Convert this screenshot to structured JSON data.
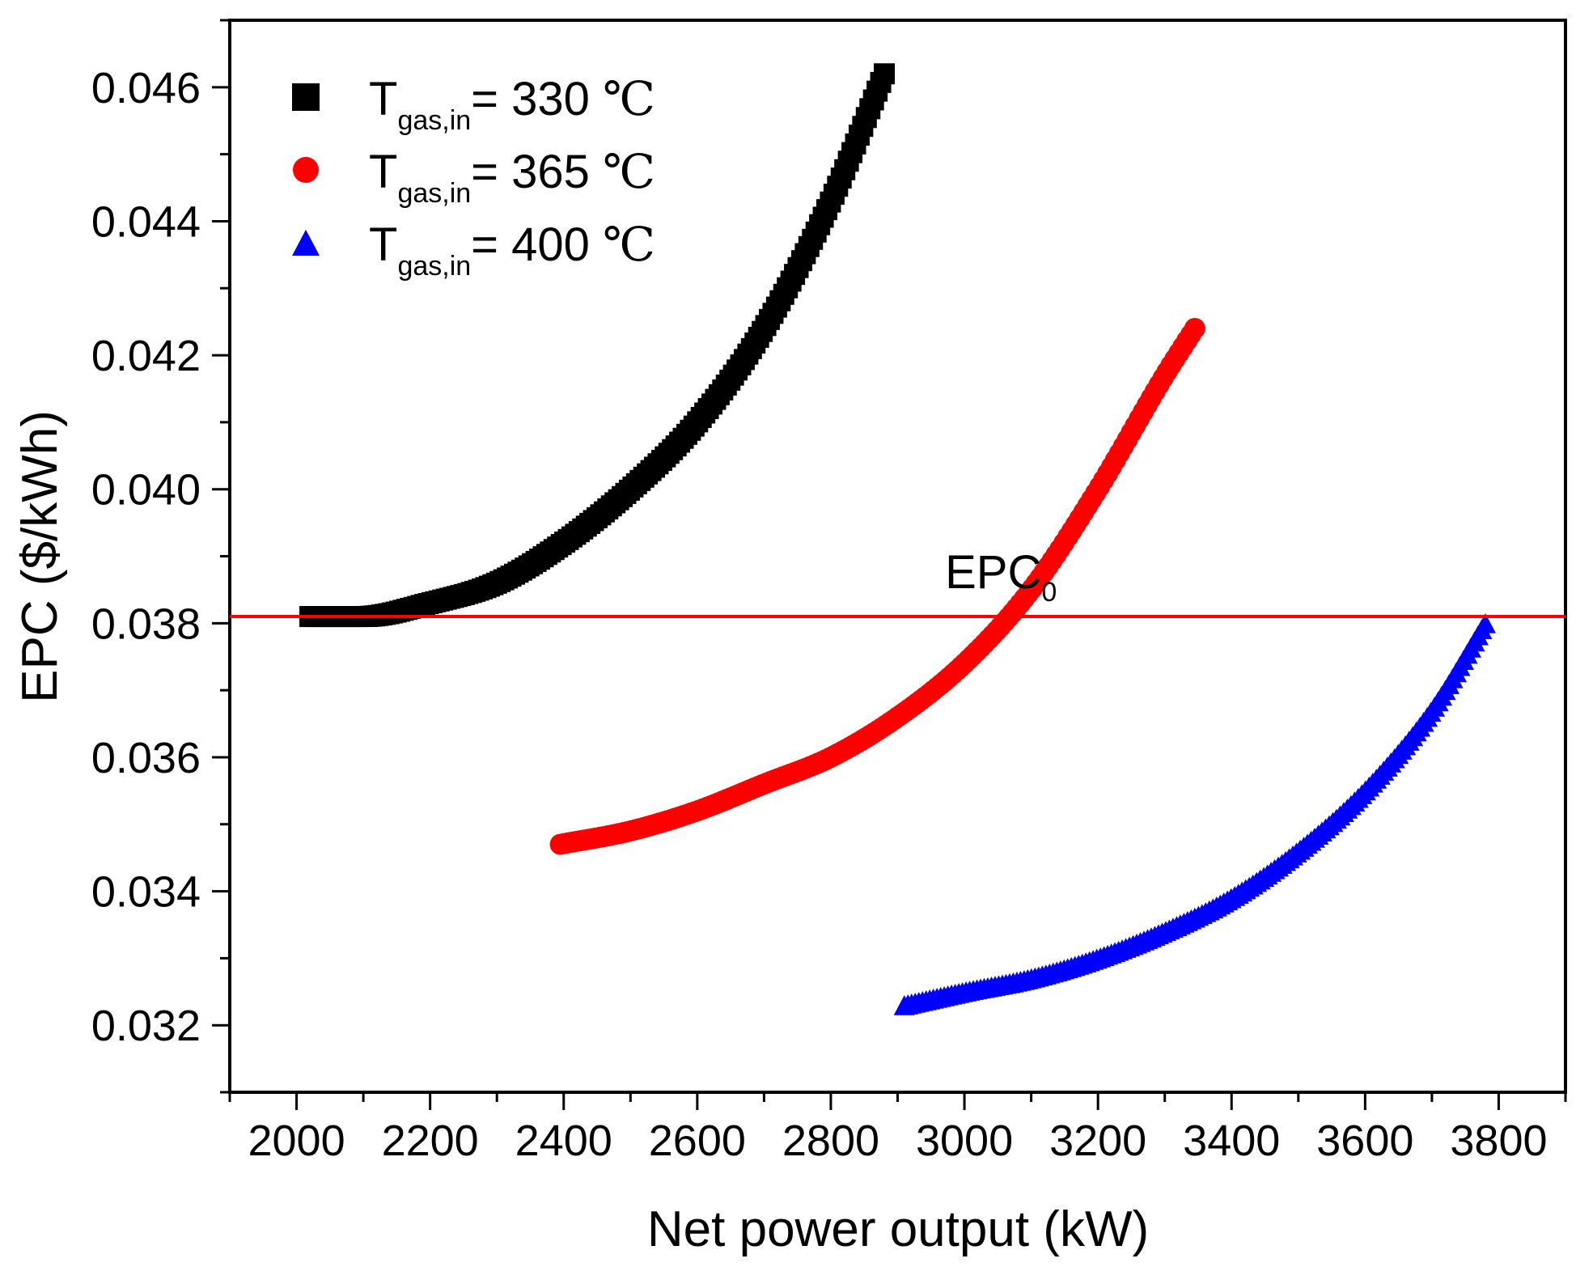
{
  "chart_data": {
    "type": "scatter",
    "xlabel": "Net power output (kW)",
    "ylabel": "EPC ($/kWh)",
    "xlim": [
      1900,
      3900
    ],
    "ylim": [
      0.031,
      0.047
    ],
    "x_ticks": [
      2000,
      2200,
      2400,
      2600,
      2800,
      3000,
      3200,
      3400,
      3600,
      3800
    ],
    "x_tick_labels": [
      "2000",
      "2200",
      "2400",
      "2600",
      "2800",
      "3000",
      "3200",
      "3400",
      "3600",
      "3800"
    ],
    "y_ticks": [
      0.032,
      0.034,
      0.036,
      0.038,
      0.04,
      0.042,
      0.044,
      0.046
    ],
    "y_tick_labels": [
      "0.032",
      "0.034",
      "0.036",
      "0.038",
      "0.040",
      "0.042",
      "0.044",
      "0.046"
    ],
    "grid": false,
    "legend_position": "top-left",
    "reference_line": {
      "label_main": "EPC",
      "label_sub": "0",
      "y": 0.0381,
      "color": "#ff0000"
    },
    "series": [
      {
        "name_main": "T",
        "name_sub": "gas,in",
        "name_value": "= 330 ",
        "name_unit": "℃",
        "marker": "square",
        "color": "#000000",
        "x": [
          2020,
          2100,
          2200,
          2300,
          2400,
          2500,
          2600,
          2700,
          2800,
          2880
        ],
        "y": [
          0.0381,
          0.0381,
          0.0383,
          0.0386,
          0.0392,
          0.04,
          0.041,
          0.0424,
          0.0443,
          0.0462
        ]
      },
      {
        "name_main": "T",
        "name_sub": "gas,in",
        "name_value": "= 365 ",
        "name_unit": "℃",
        "marker": "circle",
        "color": "#ff0000",
        "x": [
          2395,
          2500,
          2600,
          2700,
          2800,
          2900,
          3000,
          3100,
          3200,
          3300,
          3345
        ],
        "y": [
          0.0347,
          0.0349,
          0.0352,
          0.0356,
          0.036,
          0.0366,
          0.0374,
          0.0385,
          0.04,
          0.0417,
          0.0424
        ]
      },
      {
        "name_main": "T",
        "name_sub": "gas,in",
        "name_value": "= 400 ",
        "name_unit": "℃",
        "marker": "triangle",
        "color": "#0000ff",
        "x": [
          2910,
          3000,
          3100,
          3200,
          3300,
          3400,
          3500,
          3600,
          3700,
          3780
        ],
        "y": [
          0.0323,
          0.0325,
          0.0327,
          0.033,
          0.0334,
          0.0339,
          0.0346,
          0.0355,
          0.0367,
          0.038
        ]
      }
    ]
  }
}
